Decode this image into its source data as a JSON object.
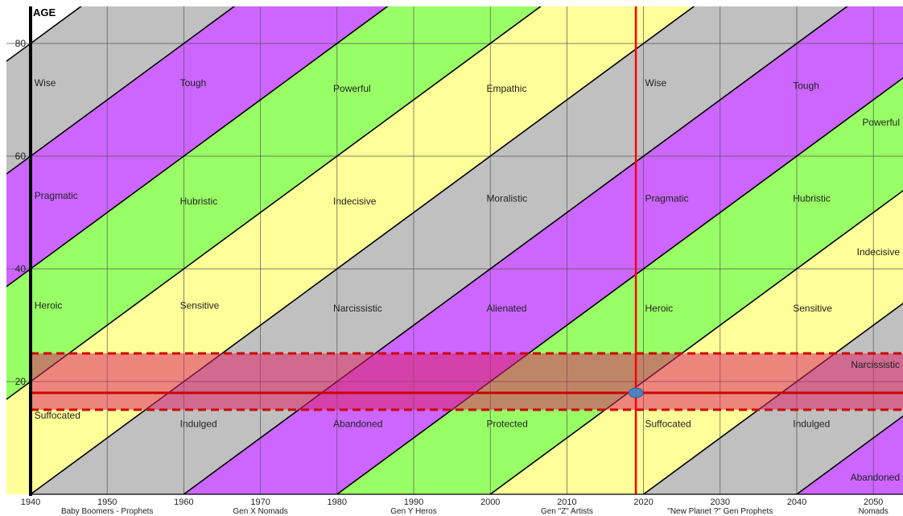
{
  "chart_data": {
    "type": "area",
    "title": "",
    "xlabel": "",
    "ylabel": "AGE",
    "xlim": [
      1940,
      2056
    ],
    "ylim": [
      0,
      85
    ],
    "x_ticks": [
      1940,
      1950,
      1960,
      1970,
      1980,
      1990,
      2000,
      2010,
      2020,
      2030,
      2040,
      2050
    ],
    "y_ticks": [
      20,
      40,
      60,
      80
    ],
    "grid": true,
    "band_width_years": 20,
    "band_colors": {
      "grey": "#c0c0c0",
      "purple": "#cc66ff",
      "green": "#99ff66",
      "yellow": "#ffff99"
    },
    "band_sequence": [
      "grey",
      "purple",
      "green",
      "yellow"
    ],
    "generations": [
      {
        "label": "Baby Boomers - Prophets",
        "center_year": 1950
      },
      {
        "label": "Gen X Nomads",
        "center_year": 1970
      },
      {
        "label": "Gen Y  Heros",
        "center_year": 1990
      },
      {
        "label": "Gen \"Z\"  Artists",
        "center_year": 2010
      },
      {
        "label": "\"New Planet ?\" Gen  Prophets",
        "center_year": 2030
      },
      {
        "label": "Nomads",
        "center_year": 2050
      }
    ],
    "annotations": [
      {
        "text": "Wise",
        "x": 1940.5,
        "y": 73
      },
      {
        "text": "Tough",
        "x": 1959.5,
        "y": 73
      },
      {
        "text": "Powerful",
        "x": 1979.5,
        "y": 72
      },
      {
        "text": "Empathic",
        "x": 1999.5,
        "y": 72
      },
      {
        "text": "Wise",
        "x": 2020.2,
        "y": 73
      },
      {
        "text": "Tough",
        "x": 2039.5,
        "y": 72.5
      },
      {
        "text": "Powerful",
        "x": 2056,
        "y": 66,
        "anchor": "end"
      },
      {
        "text": "Pragmatic",
        "x": 1940.5,
        "y": 53
      },
      {
        "text": "Hubristic",
        "x": 1959.5,
        "y": 52
      },
      {
        "text": "Indecisive",
        "x": 1979.5,
        "y": 52
      },
      {
        "text": "Moralistic",
        "x": 1999.5,
        "y": 52.5
      },
      {
        "text": "Pragmatic",
        "x": 2020.2,
        "y": 52.5
      },
      {
        "text": "Hubristic",
        "x": 2039.5,
        "y": 52.5
      },
      {
        "text": "Indecisive",
        "x": 2056,
        "y": 43,
        "anchor": "end"
      },
      {
        "text": "Heroic",
        "x": 1940.5,
        "y": 33.5
      },
      {
        "text": "Sensitive",
        "x": 1959.5,
        "y": 33.5
      },
      {
        "text": "Narcissistic",
        "x": 1979.5,
        "y": 33
      },
      {
        "text": "Alienated",
        "x": 1999.5,
        "y": 33
      },
      {
        "text": "Heroic",
        "x": 2020.2,
        "y": 33
      },
      {
        "text": "Sensitive",
        "x": 2039.5,
        "y": 33
      },
      {
        "text": "Narcissistic",
        "x": 2056,
        "y": 23,
        "anchor": "end"
      },
      {
        "text": "Suffocated",
        "x": 1940.5,
        "y": 14
      },
      {
        "text": "Indulged",
        "x": 1959.5,
        "y": 12.5
      },
      {
        "text": "Abandoned",
        "x": 1979.5,
        "y": 12.5
      },
      {
        "text": "Protected",
        "x": 1999.5,
        "y": 12.5
      },
      {
        "text": "Suffocated",
        "x": 2020.2,
        "y": 12.5
      },
      {
        "text": "Indulged",
        "x": 2039.5,
        "y": 12.5
      },
      {
        "text": "Abandoned",
        "x": 2056,
        "y": 3,
        "anchor": "end"
      }
    ],
    "highlight_band": {
      "y_from": 15,
      "y_to": 25,
      "color": "#dd2266",
      "border_color": "#cc0000"
    },
    "reference_line_y": 18,
    "reference_line_x": 2019,
    "marker": {
      "x": 2019,
      "y": 18,
      "color": "#4f81bd"
    }
  }
}
